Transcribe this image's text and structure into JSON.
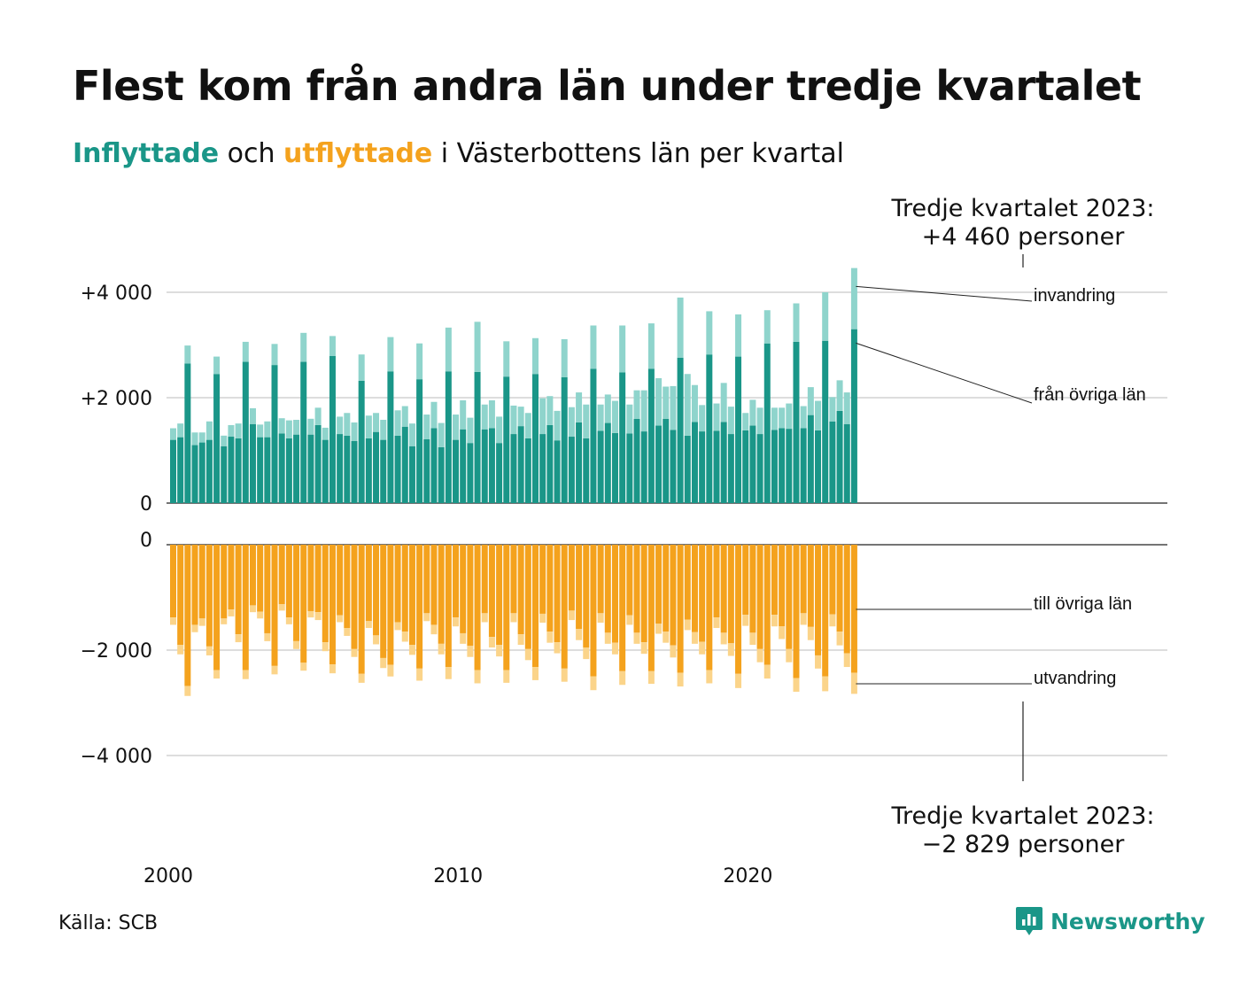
{
  "header": {
    "title": "Flest kom från andra län under tredje kvartalet",
    "subtitle_in": "Inflyttade",
    "subtitle_mid": " och ",
    "subtitle_out": "utflyttade",
    "subtitle_rest": " i Västerbottens län per kvartal"
  },
  "footer": {
    "source": "Källa: SCB",
    "brand": "Newsworthy",
    "brand_icon": "bar-chart-speech-icon"
  },
  "colors": {
    "in_domestic": "#1a9688",
    "in_immigration": "#8fd4cc",
    "out_domestic": "#f4a21d",
    "out_emigration": "#fbd48a",
    "grid": "#dddddd",
    "axis": "#222222"
  },
  "chart_data": {
    "type": "bar",
    "stacked": true,
    "diverging": true,
    "title": "Flest kom från andra län under tredje kvartalet",
    "subtitle": "Inflyttade och utflyttade i Västerbottens län per kvartal",
    "x_ticks": [
      "2000",
      "2010",
      "2020"
    ],
    "x_start": {
      "year": 2000,
      "quarter": 1
    },
    "top_panel": {
      "y_ticks": [
        {
          "value": 0,
          "label": "0"
        },
        {
          "value": 2000,
          "label": "+2 000"
        },
        {
          "value": 4000,
          "label": "+4 000"
        }
      ],
      "ylim": [
        0,
        4500
      ],
      "series": [
        {
          "name": "från övriga län",
          "values": [
            1200,
            1250,
            2650,
            1100,
            1150,
            1200,
            2450,
            1080,
            1260,
            1230,
            2680,
            1500,
            1250,
            1250,
            2620,
            1320,
            1230,
            1300,
            2680,
            1300,
            1480,
            1200,
            2790,
            1310,
            1280,
            1180,
            2320,
            1230,
            1350,
            1200,
            2500,
            1280,
            1450,
            1080,
            2350,
            1210,
            1420,
            1060,
            2500,
            1200,
            1400,
            1140,
            2490,
            1400,
            1420,
            1140,
            2400,
            1310,
            1460,
            1230,
            2450,
            1310,
            1480,
            1190,
            2390,
            1260,
            1530,
            1230,
            2550,
            1370,
            1520,
            1330,
            2480,
            1320,
            1600,
            1360,
            2550,
            1470,
            1600,
            1390,
            2760,
            1280,
            1540,
            1360,
            2820,
            1370,
            1540,
            1310,
            2780,
            1380,
            1470,
            1310,
            3030,
            1390,
            1420,
            1410,
            3060,
            1420,
            1670,
            1380,
            3080,
            1550,
            1750,
            1500,
            3300
          ]
        },
        {
          "name": "invandring",
          "values": [
            220,
            260,
            340,
            240,
            190,
            350,
            330,
            200,
            220,
            280,
            380,
            300,
            240,
            300,
            400,
            290,
            340,
            280,
            550,
            300,
            330,
            230,
            380,
            330,
            430,
            350,
            500,
            430,
            360,
            380,
            650,
            480,
            390,
            430,
            680,
            470,
            500,
            460,
            830,
            480,
            550,
            480,
            950,
            470,
            530,
            500,
            670,
            540,
            370,
            480,
            680,
            680,
            550,
            560,
            720,
            560,
            570,
            640,
            820,
            500,
            540,
            610,
            890,
            550,
            540,
            780,
            860,
            900,
            610,
            830,
            1140,
            1170,
            700,
            500,
            820,
            520,
            740,
            520,
            800,
            330,
            490,
            500,
            630,
            420,
            390,
            480,
            730,
            420,
            530,
            560,
            920,
            460,
            580,
            600,
            1160
          ]
        }
      ],
      "annotation": "Tredje kvartalet 2023:\n+4 460 personer",
      "annotation_line1": "Tredje kvartalet 2023:",
      "annotation_line2": "+4 460 personer"
    },
    "bottom_panel": {
      "y_ticks": [
        {
          "value": 0,
          "label": "0"
        },
        {
          "value": -2000,
          "label": "−2 000"
        },
        {
          "value": -4000,
          "label": "−4 000"
        }
      ],
      "ylim": [
        -4500,
        0
      ],
      "series": [
        {
          "name": "till övriga län",
          "values": [
            -1380,
            -1900,
            -2680,
            -1520,
            -1400,
            -1930,
            -2380,
            -1400,
            -1230,
            -1700,
            -2380,
            -1150,
            -1270,
            -1680,
            -2300,
            -1130,
            -1380,
            -1830,
            -2240,
            -1260,
            -1280,
            -1850,
            -2270,
            -1340,
            -1580,
            -1980,
            -2450,
            -1450,
            -1720,
            -2150,
            -2280,
            -1470,
            -1650,
            -1900,
            -2350,
            -1300,
            -1520,
            -1880,
            -2320,
            -1380,
            -1680,
            -1920,
            -2380,
            -1300,
            -1750,
            -1900,
            -2380,
            -1300,
            -1700,
            -1980,
            -2320,
            -1310,
            -1650,
            -1850,
            -2350,
            -1250,
            -1600,
            -1950,
            -2500,
            -1300,
            -1670,
            -1860,
            -2400,
            -1340,
            -1670,
            -1850,
            -2400,
            -1500,
            -1650,
            -1910,
            -2430,
            -1420,
            -1660,
            -1840,
            -2380,
            -1380,
            -1670,
            -1870,
            -2450,
            -1330,
            -1670,
            -1980,
            -2280,
            -1330,
            -1550,
            -1980,
            -2530,
            -1300,
            -1560,
            -2100,
            -2500,
            -1320,
            -1650,
            -2060,
            -2430
          ]
        },
        {
          "name": "utvandring",
          "values": [
            -140,
            -180,
            -190,
            -140,
            -140,
            -170,
            -160,
            -110,
            -130,
            -150,
            -170,
            -130,
            -130,
            -150,
            -160,
            -120,
            -130,
            -150,
            -150,
            -120,
            -150,
            -170,
            -170,
            -130,
            -150,
            -150,
            -170,
            -130,
            -170,
            -190,
            -220,
            -150,
            -190,
            -190,
            -230,
            -150,
            -180,
            -200,
            -230,
            -170,
            -200,
            -210,
            -250,
            -170,
            -200,
            -220,
            -240,
            -170,
            -200,
            -210,
            -250,
            -170,
            -210,
            -210,
            -250,
            -180,
            -210,
            -220,
            -260,
            -180,
            -210,
            -220,
            -260,
            -180,
            -210,
            -220,
            -240,
            -190,
            -210,
            -230,
            -260,
            -200,
            -220,
            -240,
            -250,
            -200,
            -220,
            -240,
            -270,
            -210,
            -230,
            -250,
            -260,
            -220,
            -240,
            -250,
            -260,
            -220,
            -250,
            -250,
            -280,
            -230,
            -260,
            -260,
            -400
          ]
        }
      ],
      "annotation": "Tredje kvartalet 2023:\n−2 829 personer",
      "annotation_line1": "Tredje kvartalet 2023:",
      "annotation_line2": "−2 829 personer"
    }
  }
}
